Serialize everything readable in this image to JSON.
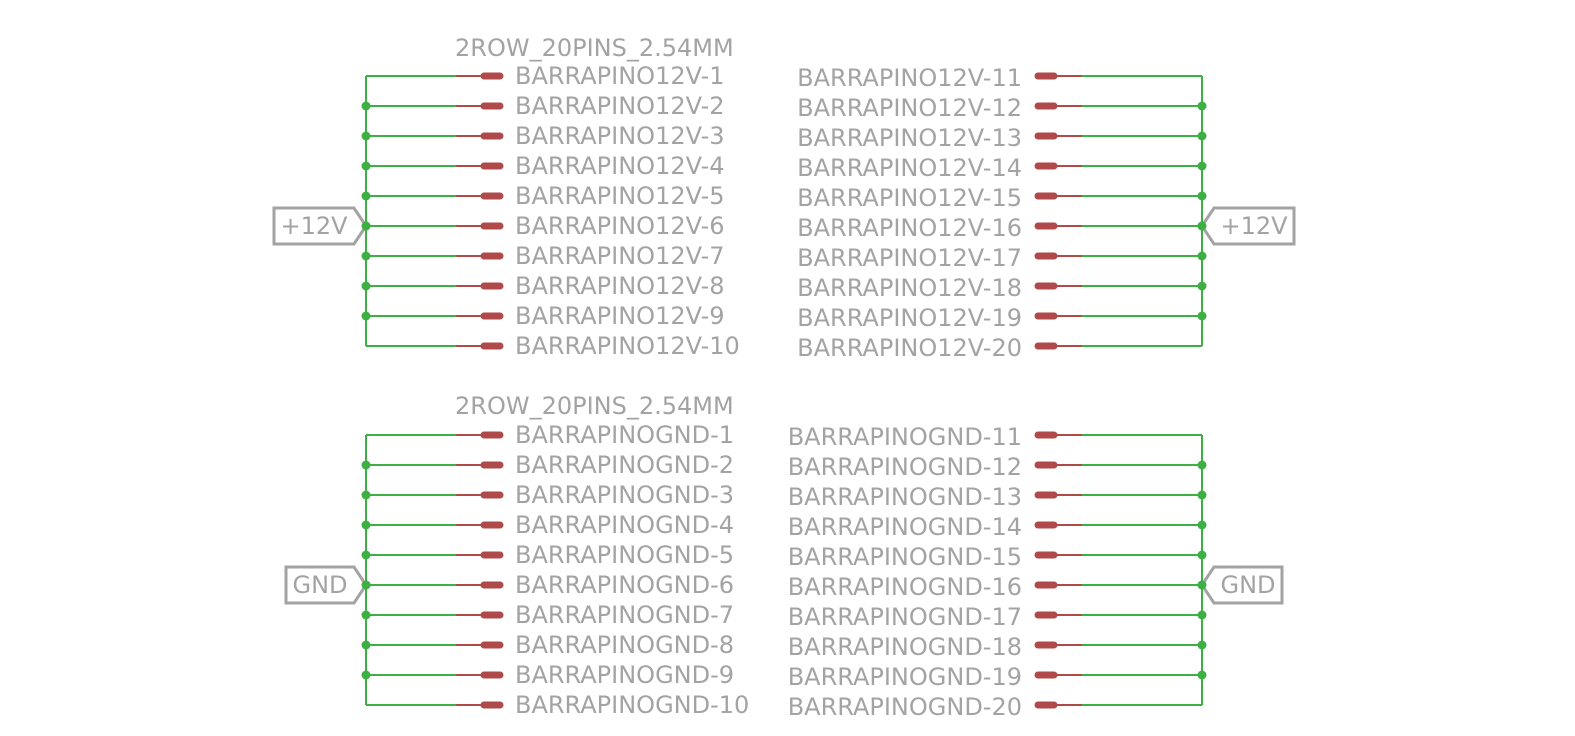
{
  "connectors": [
    {
      "id": "top",
      "part_name": "2ROW_20PINS_2.54MM",
      "net_label": "+12V",
      "left_pins": [
        "BARRAPINO12V-1",
        "BARRAPINO12V-2",
        "BARRAPINO12V-3",
        "BARRAPINO12V-4",
        "BARRAPINO12V-5",
        "BARRAPINO12V-6",
        "BARRAPINO12V-7",
        "BARRAPINO12V-8",
        "BARRAPINO12V-9",
        "BARRAPINO12V-10"
      ],
      "right_pins": [
        "BARRAPINO12V-11",
        "BARRAPINO12V-12",
        "BARRAPINO12V-13",
        "BARRAPINO12V-14",
        "BARRAPINO12V-15",
        "BARRAPINO12V-16",
        "BARRAPINO12V-17",
        "BARRAPINO12V-18",
        "BARRAPINO12V-19",
        "BARRAPINO12V-20"
      ]
    },
    {
      "id": "bottom",
      "part_name": "2ROW_20PINS_2.54MM",
      "net_label": "GND",
      "left_pins": [
        "BARRAPINOGND-1",
        "BARRAPINOGND-2",
        "BARRAPINOGND-3",
        "BARRAPINOGND-4",
        "BARRAPINOGND-5",
        "BARRAPINOGND-6",
        "BARRAPINOGND-7",
        "BARRAPINOGND-8",
        "BARRAPINOGND-9",
        "BARRAPINOGND-10"
      ],
      "right_pins": [
        "BARRAPINOGND-11",
        "BARRAPINOGND-12",
        "BARRAPINOGND-13",
        "BARRAPINOGND-14",
        "BARRAPINOGND-15",
        "BARRAPINOGND-16",
        "BARRAPINOGND-17",
        "BARRAPINOGND-18",
        "BARRAPINOGND-19",
        "BARRAPINOGND-20"
      ]
    }
  ],
  "colors": {
    "wire": "#3cb043",
    "pin": "#b04a4a",
    "text": "#a3a3a3"
  }
}
